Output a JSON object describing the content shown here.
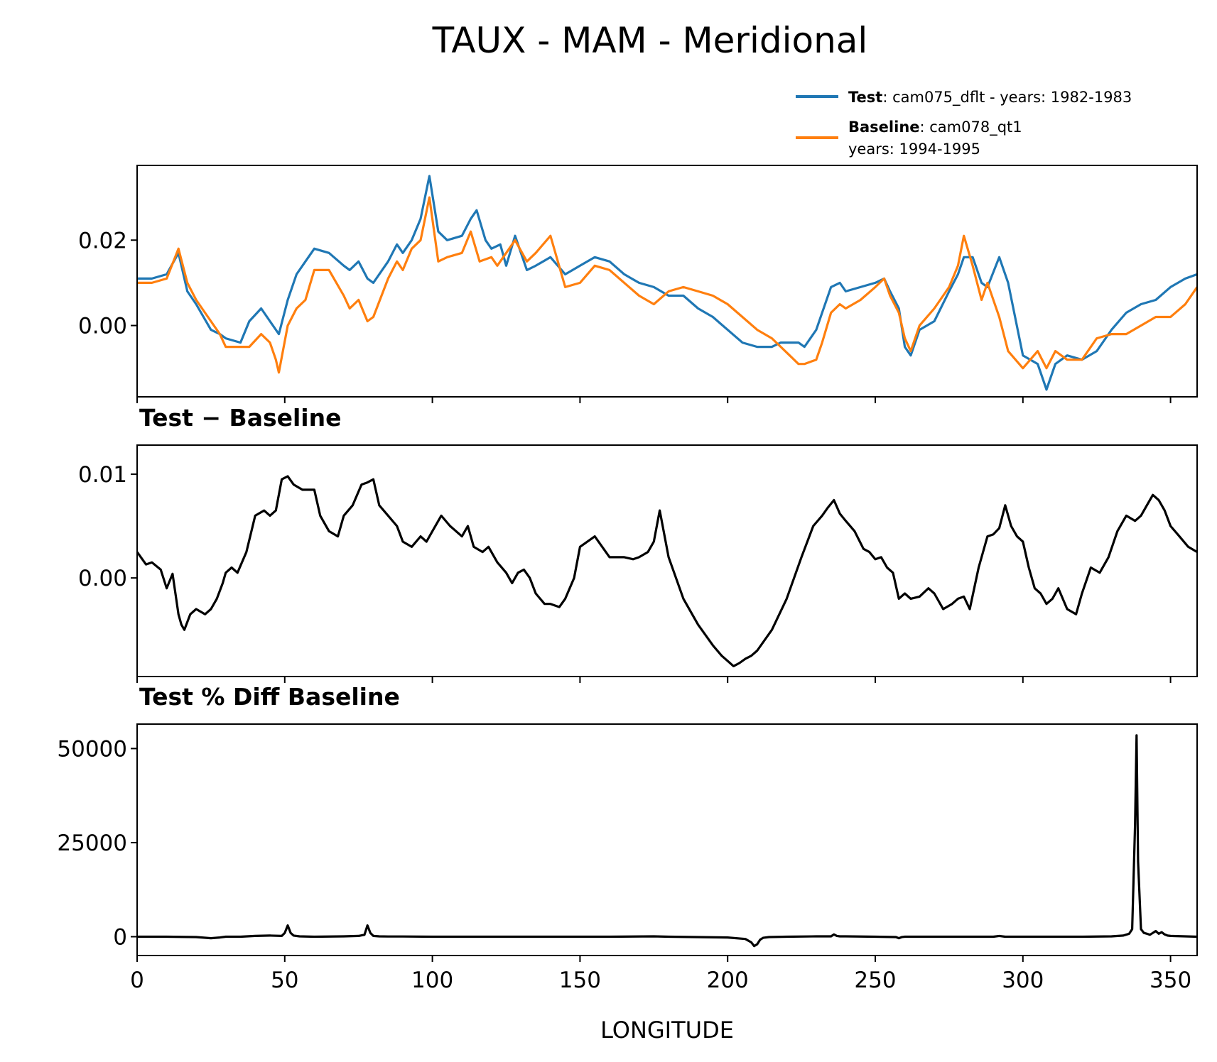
{
  "chart_data": {
    "title": "TAUX - MAM - Meridional",
    "xlabel": "LONGITUDE",
    "xlim": [
      0,
      359
    ],
    "x_ticks": [
      0,
      50,
      100,
      150,
      200,
      250,
      300,
      350
    ],
    "x_tick_labels": [
      "0",
      "50",
      "100",
      "150",
      "200",
      "250",
      "300",
      "350"
    ],
    "legend": {
      "placement": "top-right, above top panel",
      "entries": [
        {
          "bold": "Test",
          "text": ": cam075_dflt - years: 1982-1983",
          "color": "#1f77b4"
        },
        {
          "bold": "Baseline",
          "text": ": cam078_qt1",
          "text2": "years: 1994-1995",
          "color": "#ff7f0e"
        }
      ]
    },
    "panels": [
      {
        "type": "line",
        "subtitle": "",
        "ylim": [
          -0.0167,
          0.0375
        ],
        "yticks": [
          0.0,
          0.02
        ],
        "ytick_labels": [
          "0.00",
          "0.02"
        ],
        "series": [
          {
            "name": "Test",
            "color": "#1f77b4",
            "x": [
              0,
              5,
              10,
              14,
              17,
              20,
              25,
              28,
              30,
              35,
              38,
              42,
              45,
              48,
              51,
              54,
              57,
              60,
              65,
              70,
              72,
              75,
              78,
              80,
              85,
              88,
              90,
              93,
              96,
              99,
              102,
              105,
              110,
              113,
              115,
              118,
              120,
              123,
              125,
              128,
              132,
              135,
              140,
              145,
              150,
              155,
              160,
              165,
              170,
              175,
              180,
              185,
              190,
              195,
              200,
              205,
              210,
              215,
              218,
              221,
              224,
              226,
              230,
              232,
              235,
              238,
              240,
              245,
              250,
              253,
              255,
              258,
              260,
              262,
              265,
              270,
              275,
              278,
              280,
              283,
              286,
              288,
              292,
              295,
              300,
              305,
              308,
              311,
              315,
              320,
              325,
              330,
              335,
              340,
              345,
              350,
              355,
              359
            ],
            "y": [
              0.011,
              0.011,
              0.012,
              0.017,
              0.008,
              0.005,
              -0.001,
              -0.002,
              -0.003,
              -0.004,
              0.001,
              0.004,
              0.001,
              -0.002,
              0.006,
              0.012,
              0.015,
              0.018,
              0.017,
              0.014,
              0.013,
              0.015,
              0.011,
              0.01,
              0.015,
              0.019,
              0.017,
              0.02,
              0.025,
              0.035,
              0.022,
              0.02,
              0.021,
              0.025,
              0.027,
              0.02,
              0.018,
              0.019,
              0.014,
              0.021,
              0.013,
              0.014,
              0.016,
              0.012,
              0.014,
              0.016,
              0.015,
              0.012,
              0.01,
              0.009,
              0.007,
              0.007,
              0.004,
              0.002,
              -0.001,
              -0.004,
              -0.005,
              -0.005,
              -0.004,
              -0.004,
              -0.004,
              -0.005,
              -0.001,
              0.003,
              0.009,
              0.01,
              0.008,
              0.009,
              0.01,
              0.011,
              0.008,
              0.004,
              -0.005,
              -0.007,
              -0.001,
              0.001,
              0.008,
              0.012,
              0.016,
              0.016,
              0.01,
              0.009,
              0.016,
              0.01,
              -0.007,
              -0.009,
              -0.015,
              -0.009,
              -0.007,
              -0.008,
              -0.006,
              -0.001,
              0.003,
              0.005,
              0.006,
              0.009,
              0.011,
              0.012
            ]
          },
          {
            "name": "Baseline",
            "color": "#ff7f0e",
            "x": [
              0,
              5,
              10,
              14,
              17,
              20,
              25,
              28,
              30,
              35,
              38,
              42,
              45,
              47,
              48,
              51,
              54,
              57,
              60,
              65,
              70,
              72,
              75,
              78,
              80,
              85,
              88,
              90,
              93,
              96,
              99,
              102,
              105,
              110,
              113,
              116,
              120,
              122,
              125,
              128,
              132,
              135,
              140,
              145,
              150,
              155,
              160,
              165,
              170,
              175,
              180,
              185,
              190,
              195,
              200,
              205,
              210,
              215,
              218,
              221,
              224,
              226,
              230,
              232,
              235,
              238,
              240,
              245,
              250,
              253,
              255,
              258,
              260,
              262,
              265,
              270,
              275,
              278,
              280,
              283,
              286,
              288,
              292,
              295,
              300,
              305,
              308,
              311,
              315,
              320,
              325,
              330,
              335,
              340,
              345,
              350,
              355,
              359
            ],
            "y": [
              0.01,
              0.01,
              0.011,
              0.018,
              0.01,
              0.006,
              0.001,
              -0.002,
              -0.005,
              -0.005,
              -0.005,
              -0.002,
              -0.004,
              -0.008,
              -0.011,
              0.0,
              0.004,
              0.006,
              0.013,
              0.013,
              0.007,
              0.004,
              0.006,
              0.001,
              0.002,
              0.011,
              0.015,
              0.013,
              0.018,
              0.02,
              0.03,
              0.015,
              0.016,
              0.017,
              0.022,
              0.015,
              0.016,
              0.014,
              0.017,
              0.02,
              0.015,
              0.017,
              0.021,
              0.009,
              0.01,
              0.014,
              0.013,
              0.01,
              0.007,
              0.005,
              0.008,
              0.009,
              0.008,
              0.007,
              0.005,
              0.002,
              -0.001,
              -0.003,
              -0.005,
              -0.007,
              -0.009,
              -0.009,
              -0.008,
              -0.004,
              0.003,
              0.005,
              0.004,
              0.006,
              0.009,
              0.011,
              0.007,
              0.003,
              -0.003,
              -0.006,
              0.0,
              0.004,
              0.009,
              0.014,
              0.021,
              0.014,
              0.006,
              0.01,
              0.002,
              -0.006,
              -0.01,
              -0.006,
              -0.01,
              -0.006,
              -0.008,
              -0.008,
              -0.003,
              -0.002,
              -0.002,
              0.0,
              0.002,
              0.002,
              0.005,
              0.009
            ]
          }
        ]
      },
      {
        "type": "line",
        "subtitle": "Test − Baseline",
        "ylim": [
          -0.0095,
          0.0128
        ],
        "yticks": [
          0.0,
          0.01
        ],
        "ytick_labels": [
          "0.00",
          "0.01"
        ],
        "series": [
          {
            "name": "Test − Baseline",
            "color": "#000000",
            "x": [
              0,
              3,
              5,
              8,
              10,
              12,
              14,
              15,
              16,
              18,
              20,
              23,
              25,
              27,
              29,
              30,
              32,
              34,
              37,
              40,
              43,
              45,
              47,
              49,
              51,
              53,
              56,
              60,
              62,
              65,
              68,
              70,
              73,
              76,
              78,
              80,
              82,
              85,
              88,
              90,
              93,
              96,
              98,
              100,
              103,
              106,
              110,
              112,
              114,
              117,
              119,
              122,
              125,
              127,
              129,
              131,
              133,
              135,
              138,
              140,
              143,
              145,
              148,
              150,
              155,
              160,
              165,
              168,
              170,
              173,
              175,
              177,
              180,
              185,
              190,
              195,
              198,
              200,
              202,
              204,
              206,
              208,
              210,
              215,
              220,
              225,
              229,
              232,
              234,
              236,
              238,
              240,
              243,
              246,
              248,
              250,
              252,
              254,
              256,
              258,
              260,
              262,
              265,
              268,
              270,
              273,
              276,
              278,
              280,
              282,
              285,
              288,
              290,
              292,
              294,
              296,
              298,
              300,
              302,
              304,
              306,
              308,
              310,
              312,
              315,
              318,
              320,
              323,
              326,
              329,
              332,
              335,
              338,
              340,
              342,
              344,
              346,
              348,
              350,
              353,
              356,
              359
            ],
            "y": [
              0.0025,
              0.0013,
              0.0015,
              0.0008,
              -0.001,
              0.0004,
              -0.0035,
              -0.0045,
              -0.005,
              -0.0035,
              -0.003,
              -0.0035,
              -0.003,
              -0.002,
              -0.0005,
              0.0005,
              0.001,
              0.0005,
              0.0025,
              0.006,
              0.0065,
              0.006,
              0.0065,
              0.0095,
              0.0098,
              0.009,
              0.0085,
              0.0085,
              0.006,
              0.0045,
              0.004,
              0.006,
              0.007,
              0.009,
              0.0092,
              0.0095,
              0.007,
              0.006,
              0.005,
              0.0035,
              0.003,
              0.004,
              0.0035,
              0.0045,
              0.006,
              0.005,
              0.004,
              0.005,
              0.003,
              0.0025,
              0.003,
              0.0015,
              0.0005,
              -0.0005,
              0.0005,
              0.0008,
              0.0,
              -0.0015,
              -0.0025,
              -0.0025,
              -0.0028,
              -0.002,
              0.0,
              0.003,
              0.004,
              0.002,
              0.002,
              0.0018,
              0.002,
              0.0025,
              0.0035,
              0.0065,
              0.002,
              -0.002,
              -0.0045,
              -0.0065,
              -0.0075,
              -0.008,
              -0.0085,
              -0.0082,
              -0.0078,
              -0.0075,
              -0.007,
              -0.005,
              -0.002,
              0.002,
              0.005,
              0.006,
              0.0068,
              0.0075,
              0.0062,
              0.0055,
              0.0045,
              0.0028,
              0.0025,
              0.0018,
              0.002,
              0.001,
              0.0005,
              -0.002,
              -0.0015,
              -0.002,
              -0.0018,
              -0.001,
              -0.0015,
              -0.003,
              -0.0025,
              -0.002,
              -0.0018,
              -0.003,
              0.001,
              0.004,
              0.0042,
              0.0048,
              0.007,
              0.005,
              0.004,
              0.0035,
              0.001,
              -0.001,
              -0.0015,
              -0.0025,
              -0.002,
              -0.001,
              -0.003,
              -0.0035,
              -0.0015,
              0.001,
              0.0005,
              0.002,
              0.0045,
              0.006,
              0.0055,
              0.006,
              0.007,
              0.008,
              0.0075,
              0.0065,
              0.005,
              0.004,
              0.003,
              0.0025
            ]
          }
        ]
      },
      {
        "type": "line",
        "subtitle": "Test % Diff Baseline",
        "ylim": [
          -5000,
          56500
        ],
        "yticks": [
          0,
          25000,
          50000
        ],
        "ytick_labels": [
          "0",
          "25000",
          "50000"
        ],
        "series": [
          {
            "name": "Test % Diff Baseline",
            "color": "#000000",
            "x": [
              0,
              10,
              20,
              25,
              28,
              30,
              35,
              40,
              45,
              49,
              50,
              51,
              52,
              53,
              55,
              60,
              70,
              75,
              77,
              78,
              79,
              80,
              82,
              85,
              90,
              100,
              120,
              140,
              160,
              175,
              180,
              200,
              206,
              208,
              209,
              210,
              211,
              212,
              214,
              220,
              230,
              235,
              236,
              237,
              238,
              240,
              250,
              257,
              258,
              259,
              260,
              270,
              280,
              290,
              292,
              294,
              300,
              320,
              330,
              334,
              336,
              337,
              338,
              338.5,
              339,
              340,
              341,
              342,
              343,
              344,
              345,
              346,
              347,
              348,
              349,
              350,
              355,
              359
            ],
            "y": [
              0,
              0,
              -100,
              -400,
              -200,
              0,
              0,
              200,
              300,
              200,
              1000,
              3000,
              1000,
              300,
              100,
              0,
              100,
              200,
              500,
              3000,
              1000,
              200,
              100,
              50,
              50,
              0,
              0,
              0,
              0,
              100,
              0,
              -200,
              -600,
              -1500,
              -2500,
              -2000,
              -800,
              -300,
              -100,
              0,
              100,
              100,
              600,
              200,
              100,
              100,
              0,
              -100,
              -400,
              -100,
              0,
              0,
              0,
              0,
              200,
              0,
              0,
              0,
              100,
              300,
              800,
              2000,
              30000,
              53500,
              20000,
              2000,
              1000,
              800,
              500,
              1000,
              1500,
              800,
              1200,
              600,
              300,
              200,
              100,
              0
            ]
          }
        ]
      }
    ]
  }
}
